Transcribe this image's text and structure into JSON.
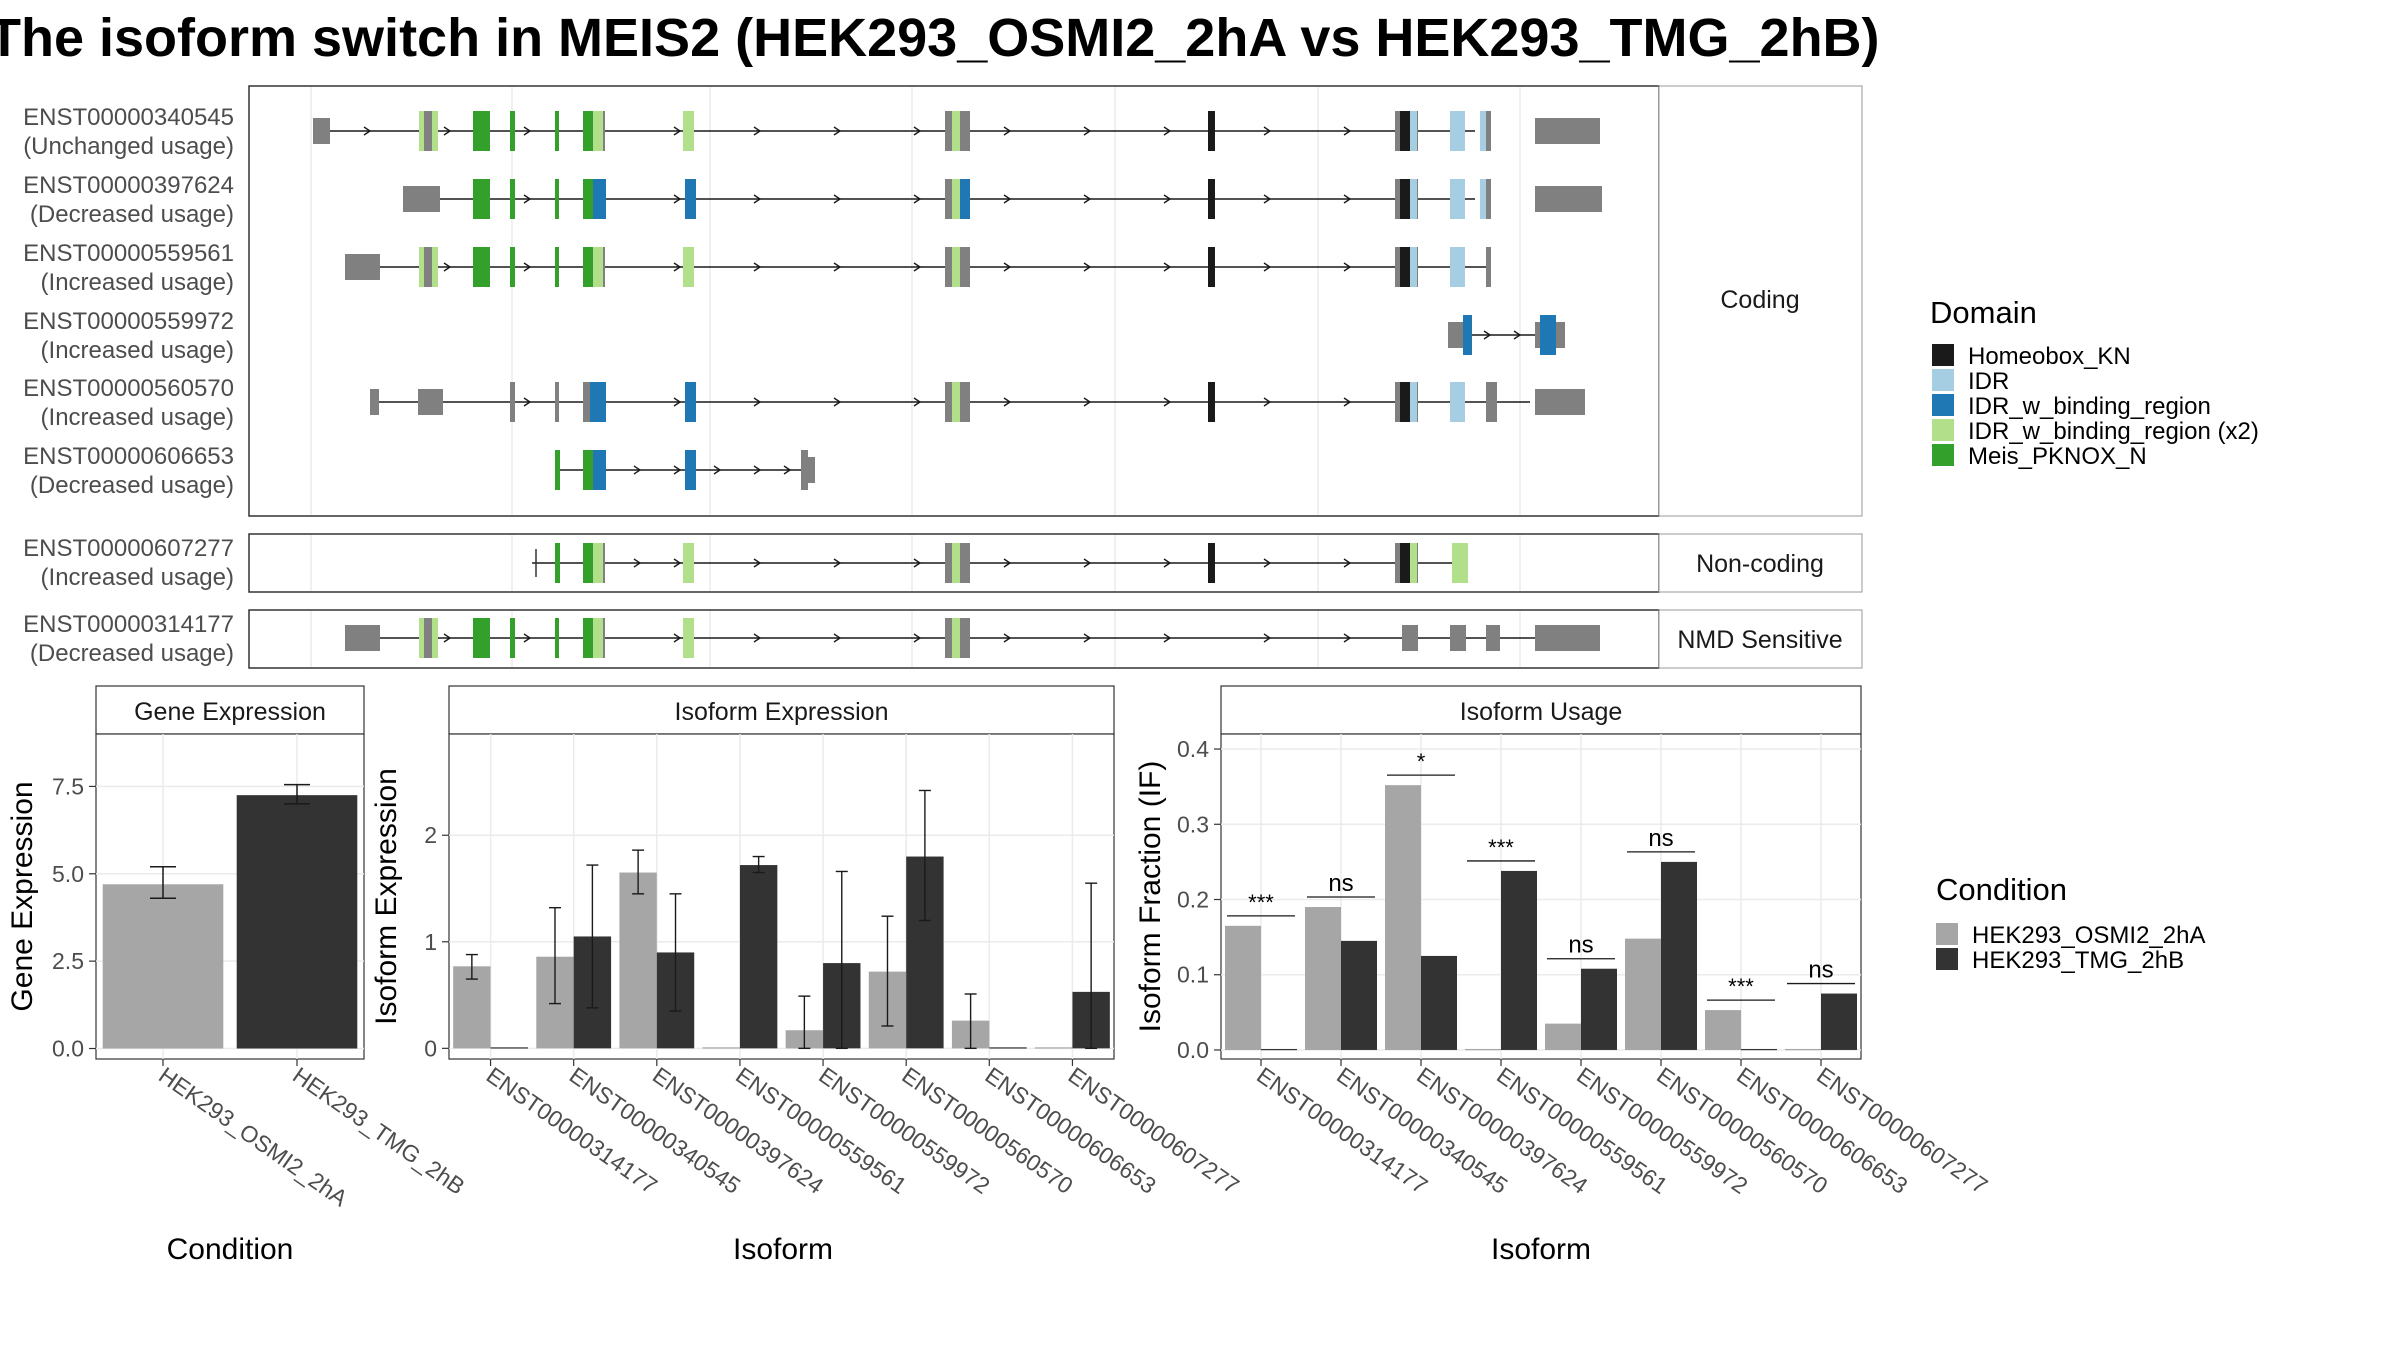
{
  "title": "The isoform switch in MEIS2 (HEK293_OSMI2_2hA vs HEK293_TMG_2hB)",
  "colors": {
    "exon": "#808080",
    "cond1": "#a6a6a6",
    "cond2": "#333333",
    "Homeobox_KN": "#1a1a1a",
    "IDR": "#a6cee3",
    "IDR_w_binding_region": "#1f78b4",
    "IDR_w_binding_region_x2": "#b2df8a",
    "Meis_PKNOX_N": "#33a02c"
  },
  "domain_legend": {
    "title": "Domain",
    "items": [
      {
        "key": "Homeobox_KN",
        "label": "Homeobox_KN"
      },
      {
        "key": "IDR",
        "label": "IDR"
      },
      {
        "key": "IDR_w_binding_region",
        "label": "IDR_w_binding_region"
      },
      {
        "key": "IDR_w_binding_region_x2",
        "label": "IDR_w_binding_region (x2)"
      },
      {
        "key": "Meis_PKNOX_N",
        "label": "Meis_PKNOX_N"
      }
    ]
  },
  "condition_legend": {
    "title": "Condition",
    "items": [
      {
        "key": "cond1",
        "label": "HEK293_OSMI2_2hA"
      },
      {
        "key": "cond2",
        "label": "HEK293_TMG_2hB"
      }
    ]
  },
  "structure": {
    "groups": [
      {
        "label": "Coding",
        "transcripts": [
          {
            "id": "ENST00000340545",
            "usage": "(Unchanged usage)"
          },
          {
            "id": "ENST00000397624",
            "usage": "(Decreased usage)"
          },
          {
            "id": "ENST00000559561",
            "usage": "(Increased usage)"
          },
          {
            "id": "ENST00000559972",
            "usage": "(Increased usage)"
          },
          {
            "id": "ENST00000560570",
            "usage": "(Increased usage)"
          },
          {
            "id": "ENST00000606653",
            "usage": "(Decreased usage)"
          }
        ]
      },
      {
        "label": "Non-coding",
        "transcripts": [
          {
            "id": "ENST00000607277",
            "usage": "(Increased usage)"
          }
        ]
      },
      {
        "label": "NMD Sensitive",
        "transcripts": [
          {
            "id": "ENST00000314177",
            "usage": "(Decreased usage)"
          }
        ]
      }
    ]
  },
  "chart_data": [
    {
      "type": "bar",
      "title": "Gene Expression",
      "xlabel": "Condition",
      "ylabel": "Gene Expression",
      "categories": [
        "HEK293_OSMI2_2hA",
        "HEK293_TMG_2hB"
      ],
      "values": [
        4.7,
        7.25
      ],
      "errors": [
        [
          4.3,
          5.2
        ],
        [
          7.0,
          7.55
        ]
      ],
      "ylim": [
        -0.3,
        9.0
      ],
      "yticks": [
        "0.0",
        "2.5",
        "5.0",
        "7.5"
      ]
    },
    {
      "type": "bar",
      "title": "Isoform Expression",
      "xlabel": "Isoform",
      "ylabel": "Isoform Expression",
      "categories": [
        "ENST00000314177",
        "ENST00000340545",
        "ENST00000397624",
        "ENST00000559561",
        "ENST00000559972",
        "ENST00000560570",
        "ENST00000606653",
        "ENST00000607277"
      ],
      "series": [
        {
          "name": "HEK293_OSMI2_2hA",
          "values": [
            0.77,
            0.86,
            1.65,
            0,
            0.17,
            0.72,
            0.26,
            0
          ]
        },
        {
          "name": "HEK293_TMG_2hB",
          "values": [
            0,
            1.05,
            0.9,
            1.72,
            0.8,
            1.8,
            0,
            0.53
          ]
        }
      ],
      "errors": [
        [
          [
            0.65,
            0.88
          ],
          [
            0.42,
            1.32
          ],
          [
            1.45,
            1.86
          ],
          null,
          [
            0,
            0.49
          ],
          [
            0.21,
            1.24
          ],
          [
            0,
            0.51
          ],
          null
        ],
        [
          null,
          [
            0.38,
            1.72
          ],
          [
            0.35,
            1.45
          ],
          [
            1.65,
            1.8
          ],
          [
            0,
            1.66
          ],
          [
            1.2,
            2.42
          ],
          null,
          [
            0,
            1.55
          ]
        ]
      ],
      "ylim": [
        -0.1,
        2.95
      ],
      "yticks": [
        "0",
        "1",
        "2"
      ]
    },
    {
      "type": "bar",
      "title": "Isoform Usage",
      "xlabel": "Isoform",
      "ylabel": "Isoform Fraction (IF)",
      "categories": [
        "ENST00000314177",
        "ENST00000340545",
        "ENST00000397624",
        "ENST00000559561",
        "ENST00000559972",
        "ENST00000560570",
        "ENST00000606653",
        "ENST00000607277"
      ],
      "series": [
        {
          "name": "HEK293_OSMI2_2hA",
          "values": [
            0.165,
            0.19,
            0.352,
            0,
            0.035,
            0.148,
            0.053,
            0
          ]
        },
        {
          "name": "HEK293_TMG_2hB",
          "values": [
            0,
            0.145,
            0.125,
            0.238,
            0.108,
            0.25,
            0,
            0.075
          ]
        }
      ],
      "significance": [
        "***",
        "ns",
        "*",
        "***",
        "ns",
        "ns",
        "***",
        "ns"
      ],
      "ylim": [
        -0.012,
        0.42
      ],
      "yticks": [
        "0.0",
        "0.1",
        "0.2",
        "0.3",
        "0.4"
      ]
    }
  ]
}
